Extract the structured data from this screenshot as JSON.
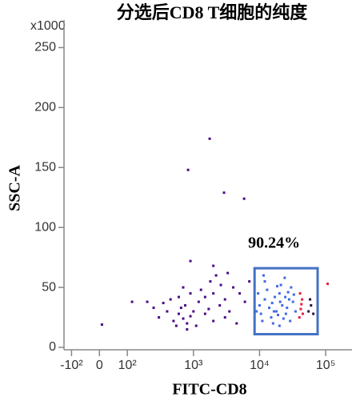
{
  "chart_data": {
    "type": "scatter",
    "title": "分选后CD8 T细胞的纯度",
    "x_label": "FITC-CD8",
    "y_label": "SSC-A",
    "y_multiplier": "x1000",
    "xscale": "biexponential",
    "xlim": [
      -130,
      250000
    ],
    "ylim": [
      -2,
      273
    ],
    "xticks": [
      {
        "value": -100,
        "label": "-10²"
      },
      0,
      {
        "value": 100,
        "label": "10²"
      },
      {
        "value": 1000,
        "label": "10³"
      },
      {
        "value": 10000,
        "label": "10⁴"
      },
      {
        "value": 100000,
        "label": "10⁵"
      }
    ],
    "yticks": [
      0,
      50,
      100,
      150,
      200,
      250
    ],
    "gate": {
      "x": [
        8400,
        75500
      ],
      "y": [
        11,
        66
      ],
      "color": "#4472c4",
      "label": "90.24%"
    },
    "series": [
      {
        "color": "#4b0a86",
        "x": [
          300,
          400,
          500,
          600,
          700,
          800,
          900,
          1000,
          550,
          650,
          750,
          450,
          1200,
          1500,
          2000,
          2500,
          3000,
          3500,
          4000,
          1800,
          2200,
          1300,
          900,
          600,
          350,
          250,
          200,
          5000,
          6000,
          7000,
          3000,
          2000,
          1500,
          1100,
          800,
          4500,
          1700,
          2600,
          3300,
          700,
          1760,
          830,
          2900,
          5840,
          9,
          118,
          900,
          2000
        ],
        "y": [
          25,
          30,
          22,
          28,
          24,
          20,
          26,
          30,
          18,
          33,
          35,
          40,
          38,
          42,
          45,
          35,
          40,
          30,
          50,
          55,
          60,
          48,
          45,
          42,
          37,
          33,
          38,
          45,
          38,
          55,
          25,
          22,
          28,
          18,
          15,
          20,
          32,
          52,
          62,
          50,
          174,
          148,
          129,
          124,
          19,
          38,
          72,
          68
        ]
      },
      {
        "color": "#4169e1",
        "x": [
          9000,
          10000,
          12000,
          15000,
          18000,
          20000,
          22000,
          25000,
          28000,
          30000,
          12000,
          16000,
          20000,
          24000,
          9500,
          11000,
          14000,
          17000,
          19000,
          21000,
          26000,
          13000,
          32000,
          35000,
          10500,
          23000,
          27000,
          15500,
          18500,
          29000,
          33000,
          11500,
          20500,
          16500,
          24500
        ],
        "y": [
          30,
          35,
          40,
          25,
          30,
          45,
          35,
          28,
          40,
          50,
          55,
          20,
          18,
          58,
          45,
          22,
          33,
          42,
          27,
          52,
          33,
          48,
          38,
          30,
          28,
          24,
          46,
          37,
          51,
          22,
          44,
          60,
          38,
          30,
          42
        ]
      },
      {
        "color": "#e0204a",
        "x": [
          40000,
          42000,
          44000,
          41000,
          45000,
          43000,
          107000
        ],
        "y": [
          25,
          32,
          40,
          45,
          28,
          36,
          53
        ]
      },
      {
        "color": "#2a1040",
        "x": [
          55000,
          60000,
          65000,
          58000
        ],
        "y": [
          30,
          35,
          28,
          40
        ]
      }
    ]
  }
}
